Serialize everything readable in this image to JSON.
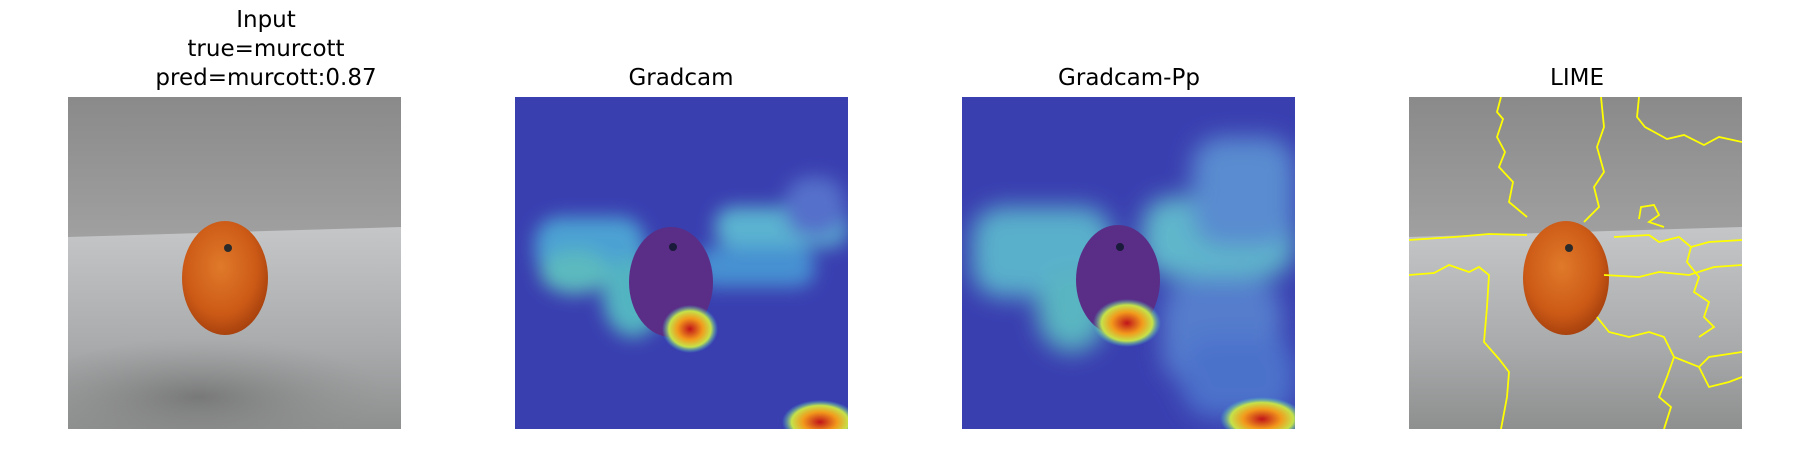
{
  "panels": [
    {
      "title_lines": [
        "Input",
        "true=murcott",
        "pred=murcott:0.87"
      ],
      "image": "input-photo-orange"
    },
    {
      "title_lines": [
        "Gradcam"
      ],
      "image": "gradcam-heatmap-overlay"
    },
    {
      "title_lines": [
        "Gradcam-Pp"
      ],
      "image": "gradcam-pp-heatmap-overlay"
    },
    {
      "title_lines": [
        "LIME"
      ],
      "image": "lime-superpixel-boundaries"
    }
  ],
  "colors": {
    "wall_gray": "#8c8c8c",
    "table_gray": "#b9bbbd",
    "orange": "#d9661c",
    "heatmap_blue": "#3a3fb0",
    "heatmap_hot": "#e8362a",
    "lime_boundary": "#ffff00"
  }
}
